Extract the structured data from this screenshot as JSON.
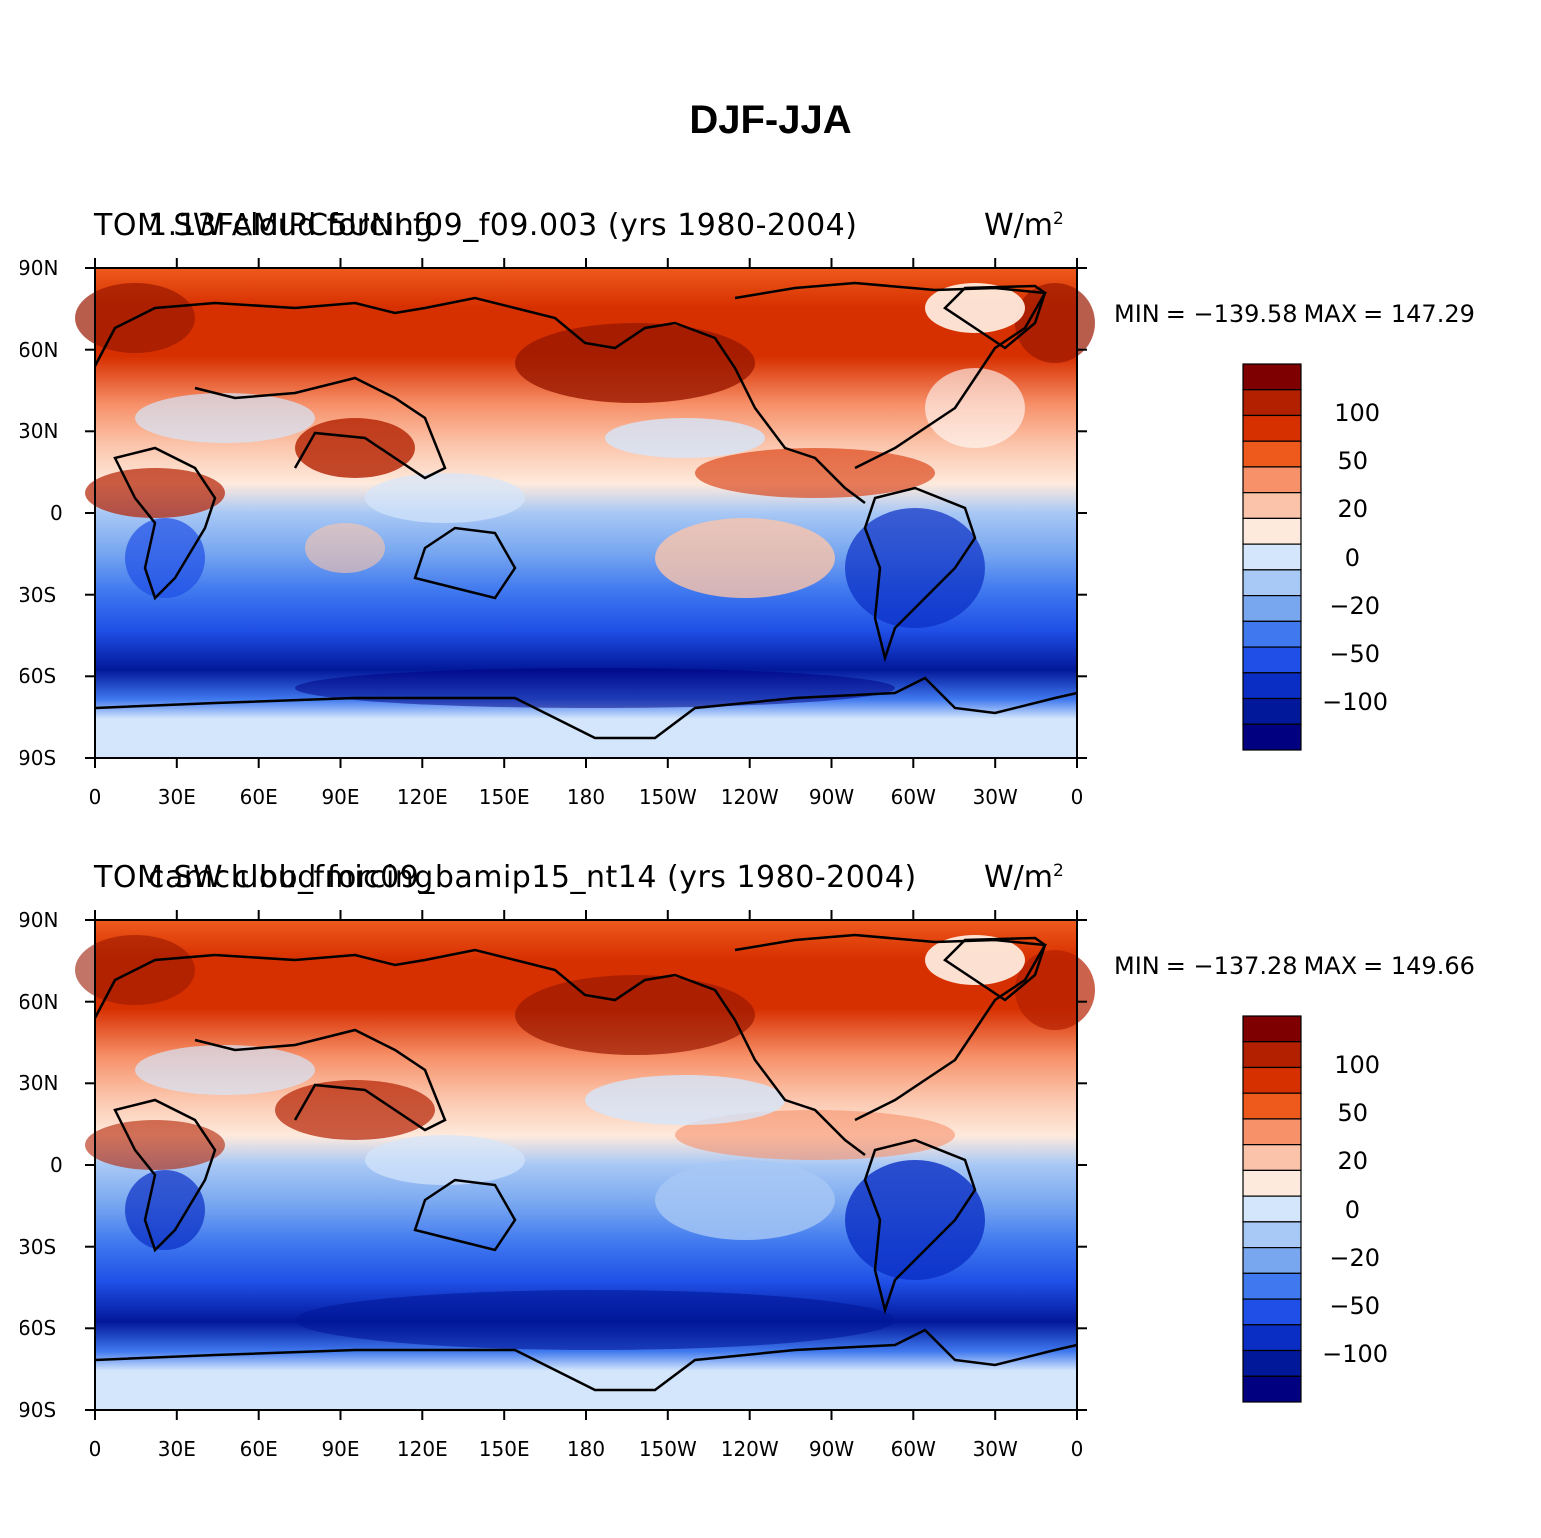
{
  "figure": {
    "title": "DJF-JJA"
  },
  "panels": [
    {
      "left_title": "TOM SW cloud forcing",
      "center_title": "1.13FAMIPC5UNI.f09_f09.003 (yrs 1980-2004)",
      "units": "W/m",
      "units_exp": "2",
      "min_label": "MIN",
      "min_value": "= −139.58",
      "max_label": "MAX",
      "max_value": "= 147.29"
    },
    {
      "left_title": "TOM SW cloud forcing",
      "center_title": "camclubb_fmic09_bamip15_nt14 (yrs 1980-2004)",
      "units": "W/m",
      "units_exp": "2",
      "min_label": "MIN",
      "min_value": "= −137.28",
      "max_label": "MAX",
      "max_value": "= 149.66"
    }
  ],
  "axes": {
    "y_ticks": [
      "90N",
      "60N",
      "30N",
      "0",
      "30S",
      "60S",
      "90S"
    ],
    "x_ticks": [
      "0",
      "30E",
      "60E",
      "90E",
      "120E",
      "150E",
      "180",
      "150W",
      "120W",
      "90W",
      "60W",
      "30W",
      "0"
    ]
  },
  "colorbar": {
    "labels": [
      "100",
      "50",
      "20",
      "0",
      "−20",
      "−50",
      "−100"
    ],
    "colors": [
      "#7f0000",
      "#b32000",
      "#d73000",
      "#ee5a1c",
      "#f7916a",
      "#fbc4aa",
      "#feeadc",
      "#d4e6fb",
      "#a8c8f5",
      "#78a7f0",
      "#3f78ef",
      "#1f4fe6",
      "#0a2ec4",
      "#02189a",
      "#000080"
    ]
  },
  "chart_data": {
    "type": "heatmap",
    "title": "DJF-JJA",
    "variable": "TOM SW cloud forcing",
    "units": "W/m^2",
    "contour_levels": [
      -120,
      -100,
      -80,
      -50,
      -30,
      -20,
      -10,
      0,
      10,
      20,
      30,
      50,
      80,
      100,
      120
    ],
    "colorbar_tick_labels": [
      "100",
      "50",
      "20",
      "0",
      "−20",
      "−50",
      "−100"
    ],
    "xlim": [
      0,
      360
    ],
    "ylim": [
      -90,
      90
    ],
    "x_ticks": [
      "0",
      "30E",
      "60E",
      "90E",
      "120E",
      "150E",
      "180",
      "150W",
      "120W",
      "90W",
      "60W",
      "30W",
      "0"
    ],
    "y_ticks": [
      "90N",
      "60N",
      "30N",
      "0",
      "30S",
      "60S",
      "90S"
    ],
    "panels": [
      {
        "case": "1.13FAMIPC5UNI.f09_f09.003 (yrs 1980-2004)",
        "min": -139.58,
        "max": 147.29
      },
      {
        "case": "camclubb_fmic09_bamip15_nt14 (yrs 1980-2004)",
        "min": -137.28,
        "max": 149.66
      }
    ]
  }
}
